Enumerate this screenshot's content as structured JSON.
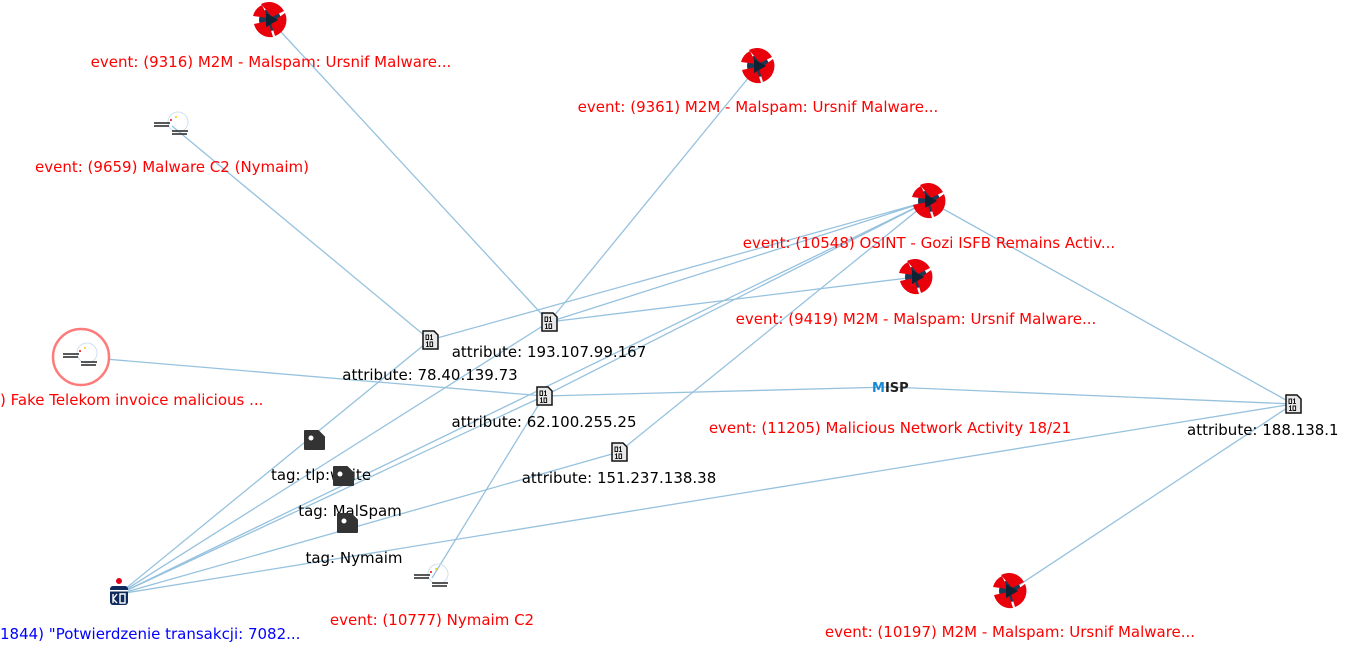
{
  "colors": {
    "edge": "#97c2de",
    "event_label": "#ff0000",
    "object_label": "#000000",
    "selected_label": "#0000ff",
    "selection_ring": "#ff7b7b",
    "event_icon": "#e8000b"
  },
  "nodes": [
    {
      "id": "e9316",
      "type": "event",
      "icon": "red-shield-icon",
      "label": "event: (9316) M2M - Malspam: Ursnif Malware..."
    },
    {
      "id": "e9361",
      "type": "event",
      "icon": "red-shield-icon",
      "label": "event: (9361) M2M - Malspam: Ursnif Malware..."
    },
    {
      "id": "e9659",
      "type": "event",
      "icon": "cert-bund-logo-icon",
      "label": "event: (9659) Malware C2 (Nymaim)"
    },
    {
      "id": "e10548",
      "type": "event",
      "icon": "red-shield-icon",
      "label": "event: (10548) OSINT - Gozi ISFB Remains Activ..."
    },
    {
      "id": "e9419",
      "type": "event",
      "icon": "red-shield-icon",
      "label": "event: (9419) M2M - Malspam: Ursnif Malware..."
    },
    {
      "id": "etelekom",
      "type": "event",
      "icon": "cert-bund-logo-icon",
      "selected": true,
      "label": ") Fake Telekom invoice malicious ..."
    },
    {
      "id": "e11205",
      "type": "event",
      "icon": "misp-logo-icon",
      "logo_text": "MISP",
      "label": "event: (11205) Malicious Network Activity 18/21"
    },
    {
      "id": "a193",
      "type": "attribute",
      "icon": "binary-file-icon",
      "label": "attribute: 193.107.99.167"
    },
    {
      "id": "a78",
      "type": "attribute",
      "icon": "binary-file-icon",
      "label": "attribute: 78.40.139.73"
    },
    {
      "id": "a62",
      "type": "attribute",
      "icon": "binary-file-icon",
      "label": "attribute: 62.100.255.25"
    },
    {
      "id": "a151",
      "type": "attribute",
      "icon": "binary-file-icon",
      "label": "attribute: 151.237.138.38"
    },
    {
      "id": "a188",
      "type": "attribute",
      "icon": "binary-file-icon",
      "label": "attribute: 188.138.1"
    },
    {
      "id": "ttlp",
      "type": "tag",
      "icon": "tag-icon",
      "label": "tag: tlp:white"
    },
    {
      "id": "tmal",
      "type": "tag",
      "icon": "tag-icon",
      "label": "tag: MalSpam"
    },
    {
      "id": "tnym",
      "type": "tag",
      "icon": "tag-icon",
      "label": "tag: Nymaim"
    },
    {
      "id": "e10777",
      "type": "event",
      "icon": "cert-bund-logo-icon",
      "label": "event: (10777) Nymaim C2"
    },
    {
      "id": "epko",
      "type": "root",
      "icon": "pko-bank-logo-icon",
      "label": "1844) \"Potwierdzenie transakcji: 7082..."
    },
    {
      "id": "e10197",
      "type": "event",
      "icon": "red-shield-icon",
      "label": "event: (10197) M2M - Malspam: Ursnif Malware..."
    }
  ],
  "edges": [
    [
      "e9316",
      "a193"
    ],
    [
      "e9361",
      "a193"
    ],
    [
      "e9659",
      "a78"
    ],
    [
      "e10548",
      "a193"
    ],
    [
      "e10548",
      "a78"
    ],
    [
      "e10548",
      "a62"
    ],
    [
      "e10548",
      "a188"
    ],
    [
      "e9419",
      "a193"
    ],
    [
      "etelekom",
      "a62"
    ],
    [
      "a62",
      "e11205"
    ],
    [
      "e11205",
      "a188"
    ],
    [
      "a151",
      "e10548"
    ],
    [
      "a62",
      "e10777"
    ],
    [
      "epko",
      "a193"
    ],
    [
      "epko",
      "a78"
    ],
    [
      "epko",
      "e10548"
    ],
    [
      "epko",
      "a62"
    ],
    [
      "epko",
      "a151"
    ],
    [
      "epko",
      "a188"
    ],
    [
      "a188",
      "e10197"
    ]
  ]
}
